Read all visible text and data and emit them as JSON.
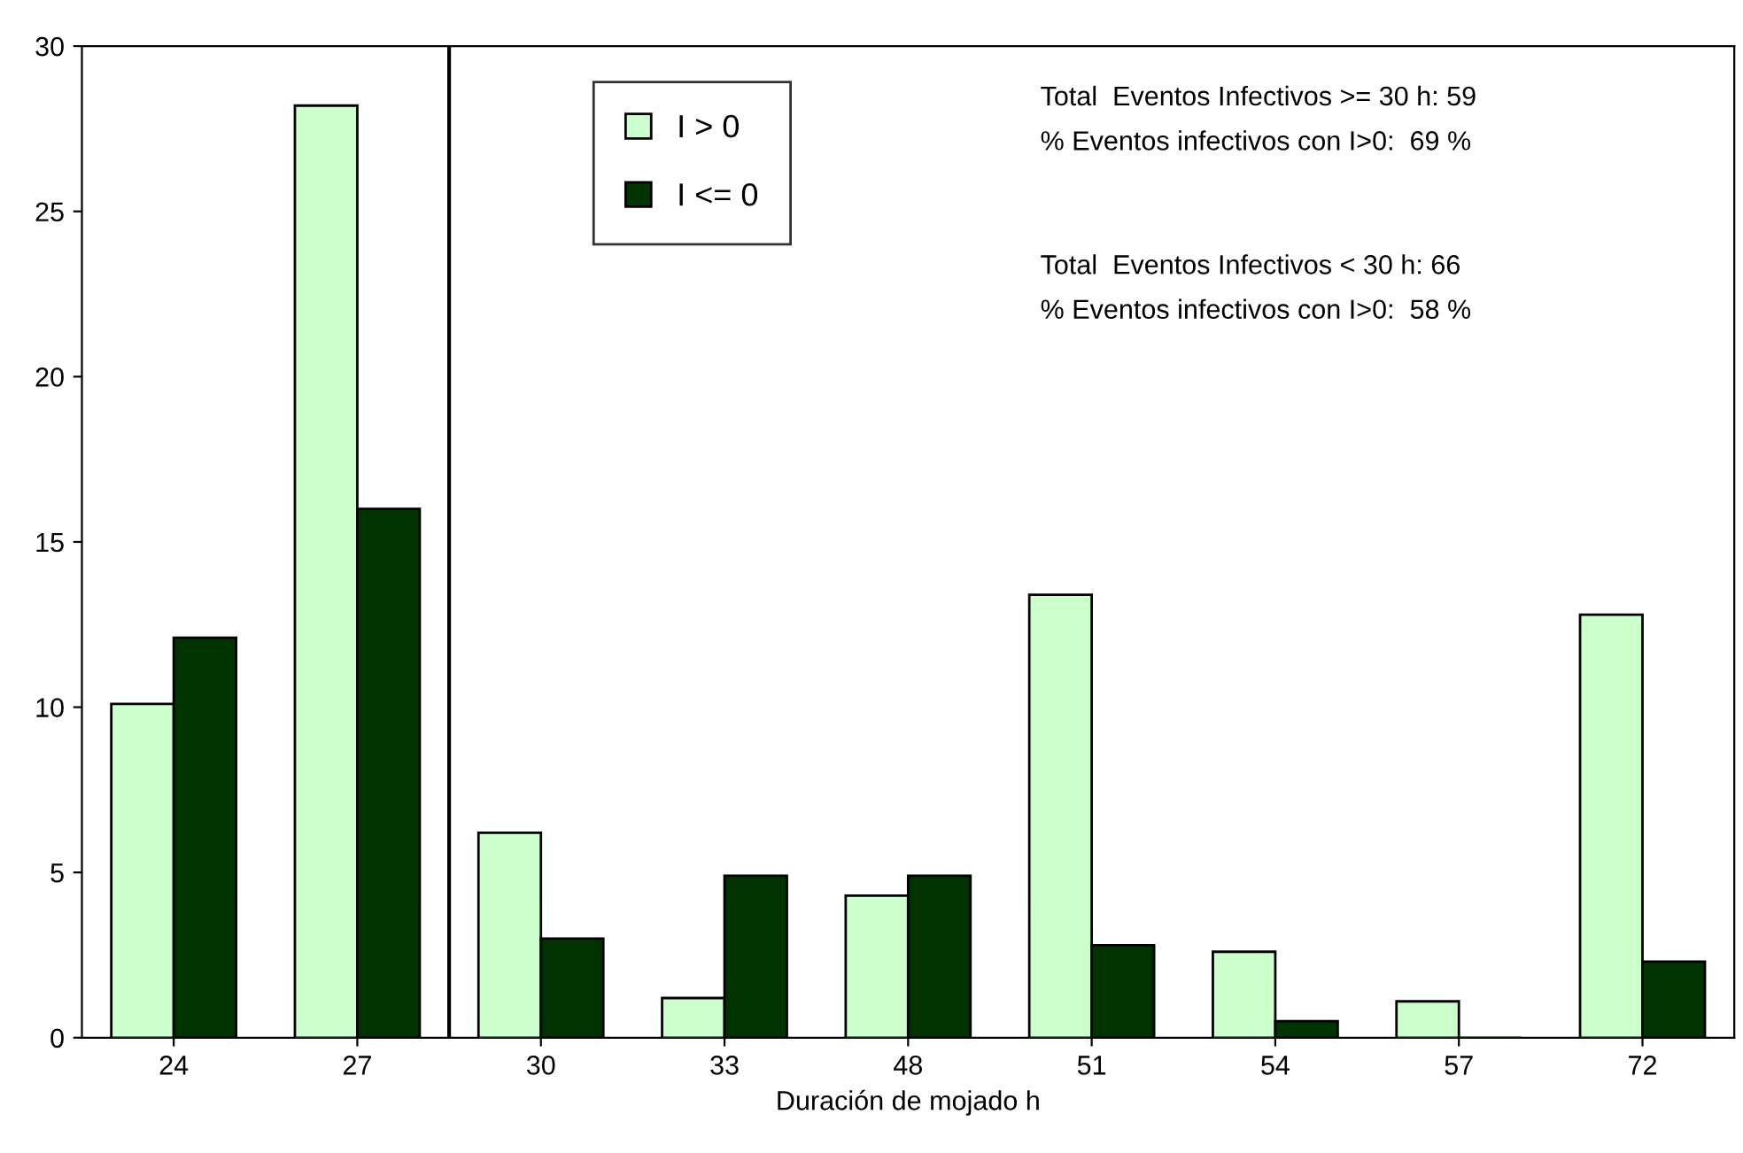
{
  "chart_data": {
    "type": "bar",
    "xlabel": "Duración de mojado h",
    "categories": [
      "24",
      "27",
      "30",
      "33",
      "48",
      "51",
      "54",
      "57",
      "72"
    ],
    "series": [
      {
        "name": "I > 0",
        "color": "#ccffcc",
        "values": [
          10.1,
          28.2,
          6.2,
          1.2,
          4.3,
          13.4,
          2.6,
          1.1,
          12.8
        ]
      },
      {
        "name": "I <= 0",
        "color": "#003300",
        "values": [
          12.1,
          16.0,
          3.0,
          4.9,
          4.9,
          2.8,
          0.5,
          0,
          2.3
        ]
      }
    ],
    "ylim": [
      0,
      30
    ],
    "yticks": [
      0,
      5,
      10,
      15,
      20,
      25,
      30
    ],
    "grid": false,
    "legend": "top",
    "annotations": [
      "Total  Eventos Infectivos >= 30 h: 59",
      "% Eventos infectivos con I>0:  69 %",
      "Total  Eventos Infectivos < 30 h: 66",
      "% Eventos infectivos con I>0:  58 %"
    ]
  }
}
